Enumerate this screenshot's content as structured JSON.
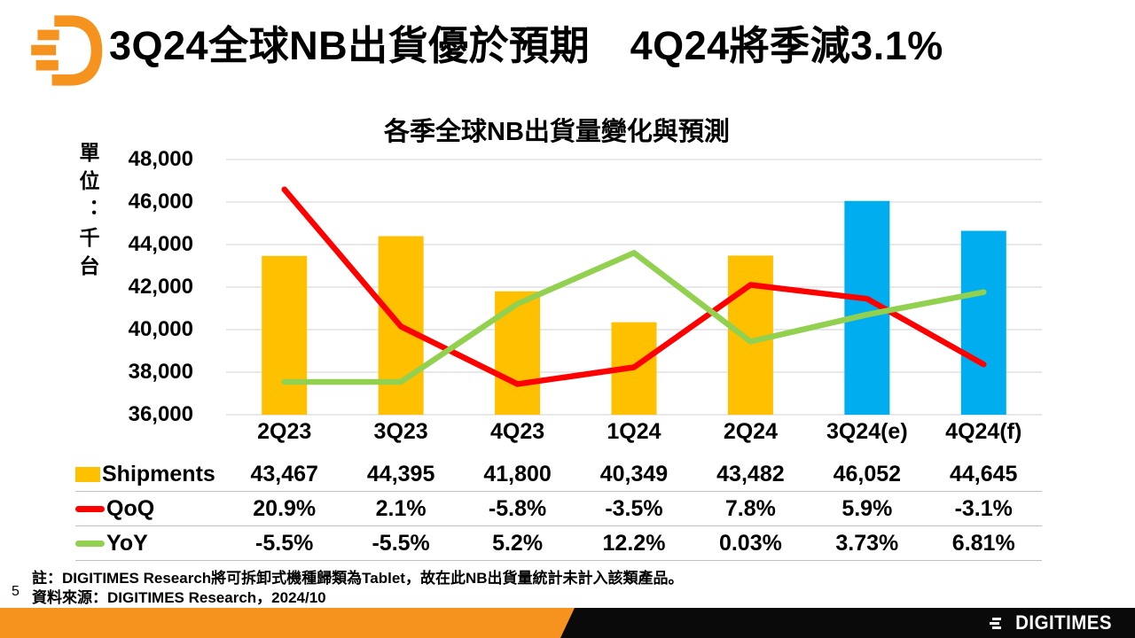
{
  "header": {
    "title": "3Q24全球NB出貨優於預期　4Q24將季減3.1%"
  },
  "branding": {
    "logo_icon": "digitimes-d-speedlines-icon",
    "wordmark_text": "DIGITIMES"
  },
  "colors": {
    "brand_orange": "#F6921E",
    "bar_yellow": "#FFC000",
    "bar_blue": "#00AEEF",
    "line_red": "#FF0000",
    "line_green": "#92D050",
    "gridline": "#D9D9D9",
    "table_rule": "#BFBFBF",
    "strip_black": "#0A0A0A"
  },
  "chart_data": {
    "type": "bar",
    "title": "各季全球NB出貨量變化與預測",
    "ylabel": "單位：千台",
    "xlabel": "",
    "grid": true,
    "legend_position": "table-left",
    "categories": [
      "2Q23",
      "3Q23",
      "4Q23",
      "1Q24",
      "2Q24",
      "3Q24(e)",
      "4Q24(f)"
    ],
    "series": [
      {
        "name": "Shipments",
        "type": "bar",
        "axis": "primary",
        "values": [
          43467,
          44395,
          41800,
          40349,
          43482,
          46052,
          44645
        ],
        "point_colors": [
          "#FFC000",
          "#FFC000",
          "#FFC000",
          "#FFC000",
          "#FFC000",
          "#00AEEF",
          "#00AEEF"
        ]
      },
      {
        "name": "QoQ",
        "type": "line",
        "axis": "secondary",
        "color": "#FF0000",
        "values": [
          20.9,
          2.1,
          -5.8,
          -3.5,
          7.8,
          5.9,
          -3.1
        ]
      },
      {
        "name": "YoY",
        "type": "line",
        "axis": "secondary",
        "color": "#92D050",
        "values": [
          -5.5,
          -5.5,
          5.2,
          12.2,
          0.03,
          3.73,
          6.81
        ]
      }
    ],
    "primary_axis": {
      "min": 36000,
      "max": 48000,
      "step": 2000,
      "tick_labels": [
        "48,000",
        "46,000",
        "44,000",
        "42,000",
        "40,000",
        "38,000",
        "36,000"
      ]
    },
    "secondary_axis": {
      "min": -10,
      "max": 25,
      "visible": false
    }
  },
  "table": {
    "rows": [
      {
        "label": "Shipments",
        "marker": "bar",
        "marker_color": "#FFC000",
        "values": [
          "43,467",
          "44,395",
          "41,800",
          "40,349",
          "43,482",
          "46,052",
          "44,645"
        ]
      },
      {
        "label": "QoQ",
        "marker": "line",
        "marker_color": "#FF0000",
        "values": [
          "20.9%",
          "2.1%",
          "-5.8%",
          "-3.5%",
          "7.8%",
          "5.9%",
          "-3.1%"
        ]
      },
      {
        "label": "YoY",
        "marker": "line",
        "marker_color": "#92D050",
        "values": [
          "-5.5%",
          "-5.5%",
          "5.2%",
          "12.2%",
          "0.03%",
          "3.73%",
          "6.81%"
        ]
      }
    ]
  },
  "footer": {
    "footnote": "註：DIGITIMES Research將可拆卸式機種歸類為Tablet，故在此NB出貨量統計未計入該類產品。",
    "source": "資料來源：DIGITIMES Research，2024/10",
    "page_number": "5"
  }
}
